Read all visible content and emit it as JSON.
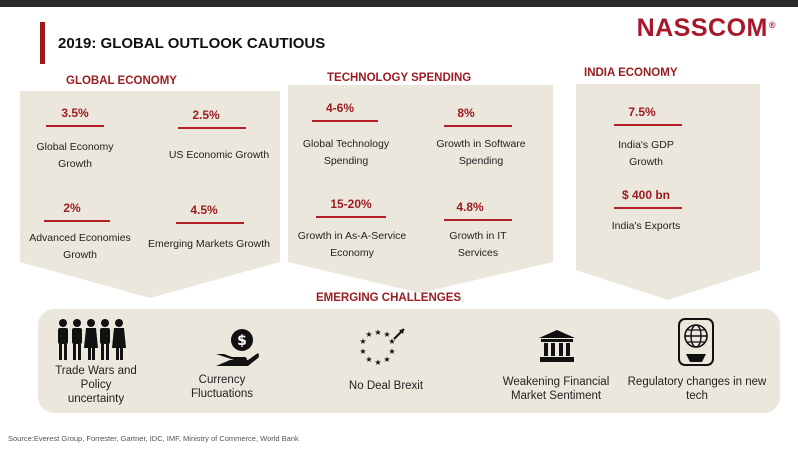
{
  "header": {
    "title": "2019: GLOBAL OUTLOOK CAUTIOUS",
    "logo": "NASSCOM",
    "logo_mark": "®"
  },
  "colors": {
    "accent": "#9b1b1f",
    "panel": "#ebe7dd",
    "brand": "#a7182a"
  },
  "global_economy": {
    "heading": "GLOBAL ECONOMY",
    "metrics": [
      {
        "value": "3.5%",
        "label_1": "Global Economy",
        "label_2": "Growth"
      },
      {
        "value": "2.5%",
        "label_1": "US Economic Growth",
        "label_2": ""
      },
      {
        "value": "2%",
        "label_1": "Advanced Economies",
        "label_2": "Growth"
      },
      {
        "value": "4.5%",
        "label_1": "Emerging Markets Growth",
        "label_2": ""
      }
    ]
  },
  "technology_spending": {
    "heading": "TECHNOLOGY SPENDING",
    "metrics": [
      {
        "value": "4-6%",
        "label_1": "Global Technology",
        "label_2": "Spending"
      },
      {
        "value": "8%",
        "label_1": "Growth in Software",
        "label_2": "Spending"
      },
      {
        "value": "15-20%",
        "label_1": "Growth in As-A-Service",
        "label_2": "Economy"
      },
      {
        "value": "4.8%",
        "label_1": "Growth in IT",
        "label_2": "Services"
      }
    ]
  },
  "india_economy": {
    "heading": "INDIA ECONOMY",
    "metrics": [
      {
        "value": "7.5%",
        "label_1": "India's GDP",
        "label_2": "Growth"
      },
      {
        "value": "$ 400 bn",
        "label_1": "India's Exports",
        "label_2": ""
      }
    ]
  },
  "challenges": {
    "heading": "EMERGING CHALLENGES",
    "items": [
      {
        "icon": "people-group-icon",
        "label_1": "Trade Wars and",
        "label_2": "Policy",
        "label_3": "uncertainty"
      },
      {
        "icon": "currency-hand-icon",
        "label_1": "Currency",
        "label_2": "Fluctuations",
        "label_3": ""
      },
      {
        "icon": "eu-stars-icon",
        "label_1": "No Deal Brexit",
        "label_2": "",
        "label_3": ""
      },
      {
        "icon": "bank-building-icon",
        "label_1": "Weakening Financial",
        "label_2": "Market Sentiment",
        "label_3": ""
      },
      {
        "icon": "globe-tech-icon",
        "label_1": "Regulatory changes in new",
        "label_2": "tech",
        "label_3": ""
      }
    ]
  },
  "source": "Source:Everest Group, Forrester, Gartner, IDC, IMF, Ministry of Commerce, World Bank"
}
